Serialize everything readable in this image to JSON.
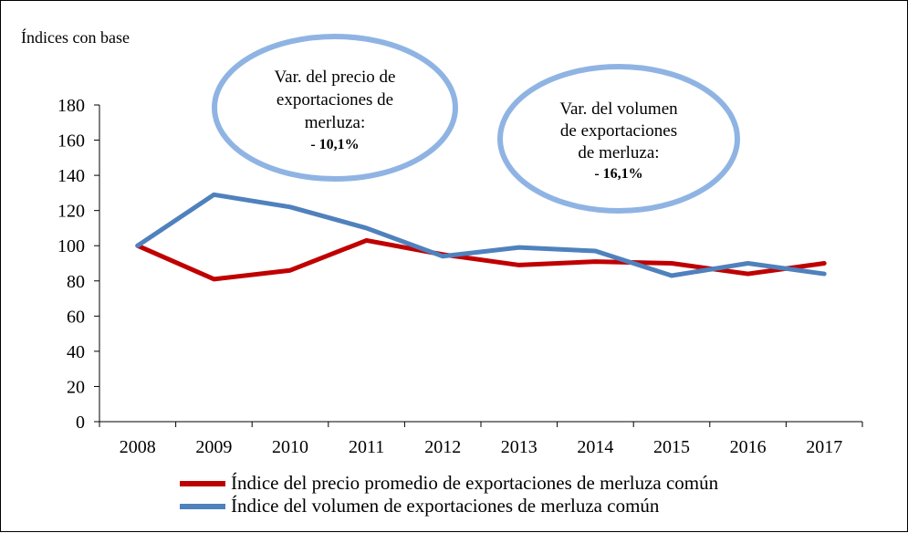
{
  "chart_data": {
    "type": "line",
    "title": "",
    "ylabel": "Índices con base",
    "xlabel": "",
    "categories": [
      "2008",
      "2009",
      "2010",
      "2011",
      "2012",
      "2013",
      "2014",
      "2015",
      "2016",
      "2017"
    ],
    "ylim": [
      0,
      180
    ],
    "yticks": [
      0,
      20,
      40,
      60,
      80,
      100,
      120,
      140,
      160,
      180
    ],
    "grid": false,
    "legend_position": "bottom",
    "series": [
      {
        "name": "Índice del precio promedio de exportaciones de merluza común",
        "color": "#c00000",
        "values": [
          100,
          81,
          86,
          103,
          95,
          89,
          91,
          90,
          84,
          90
        ]
      },
      {
        "name": "Índice del volumen de exportaciones de merluza común",
        "color": "#4f81bd",
        "values": [
          100,
          129,
          122,
          110,
          94,
          99,
          97,
          83,
          90,
          84
        ]
      }
    ],
    "annotations": [
      {
        "lines": [
          "Var. del precio de",
          "exportaciones de",
          "merluza:"
        ],
        "value": "- 10,1%"
      },
      {
        "lines": [
          "Var. del volumen",
          "de exportaciones",
          "de merluza:"
        ],
        "value": "- 16,1%"
      }
    ]
  }
}
